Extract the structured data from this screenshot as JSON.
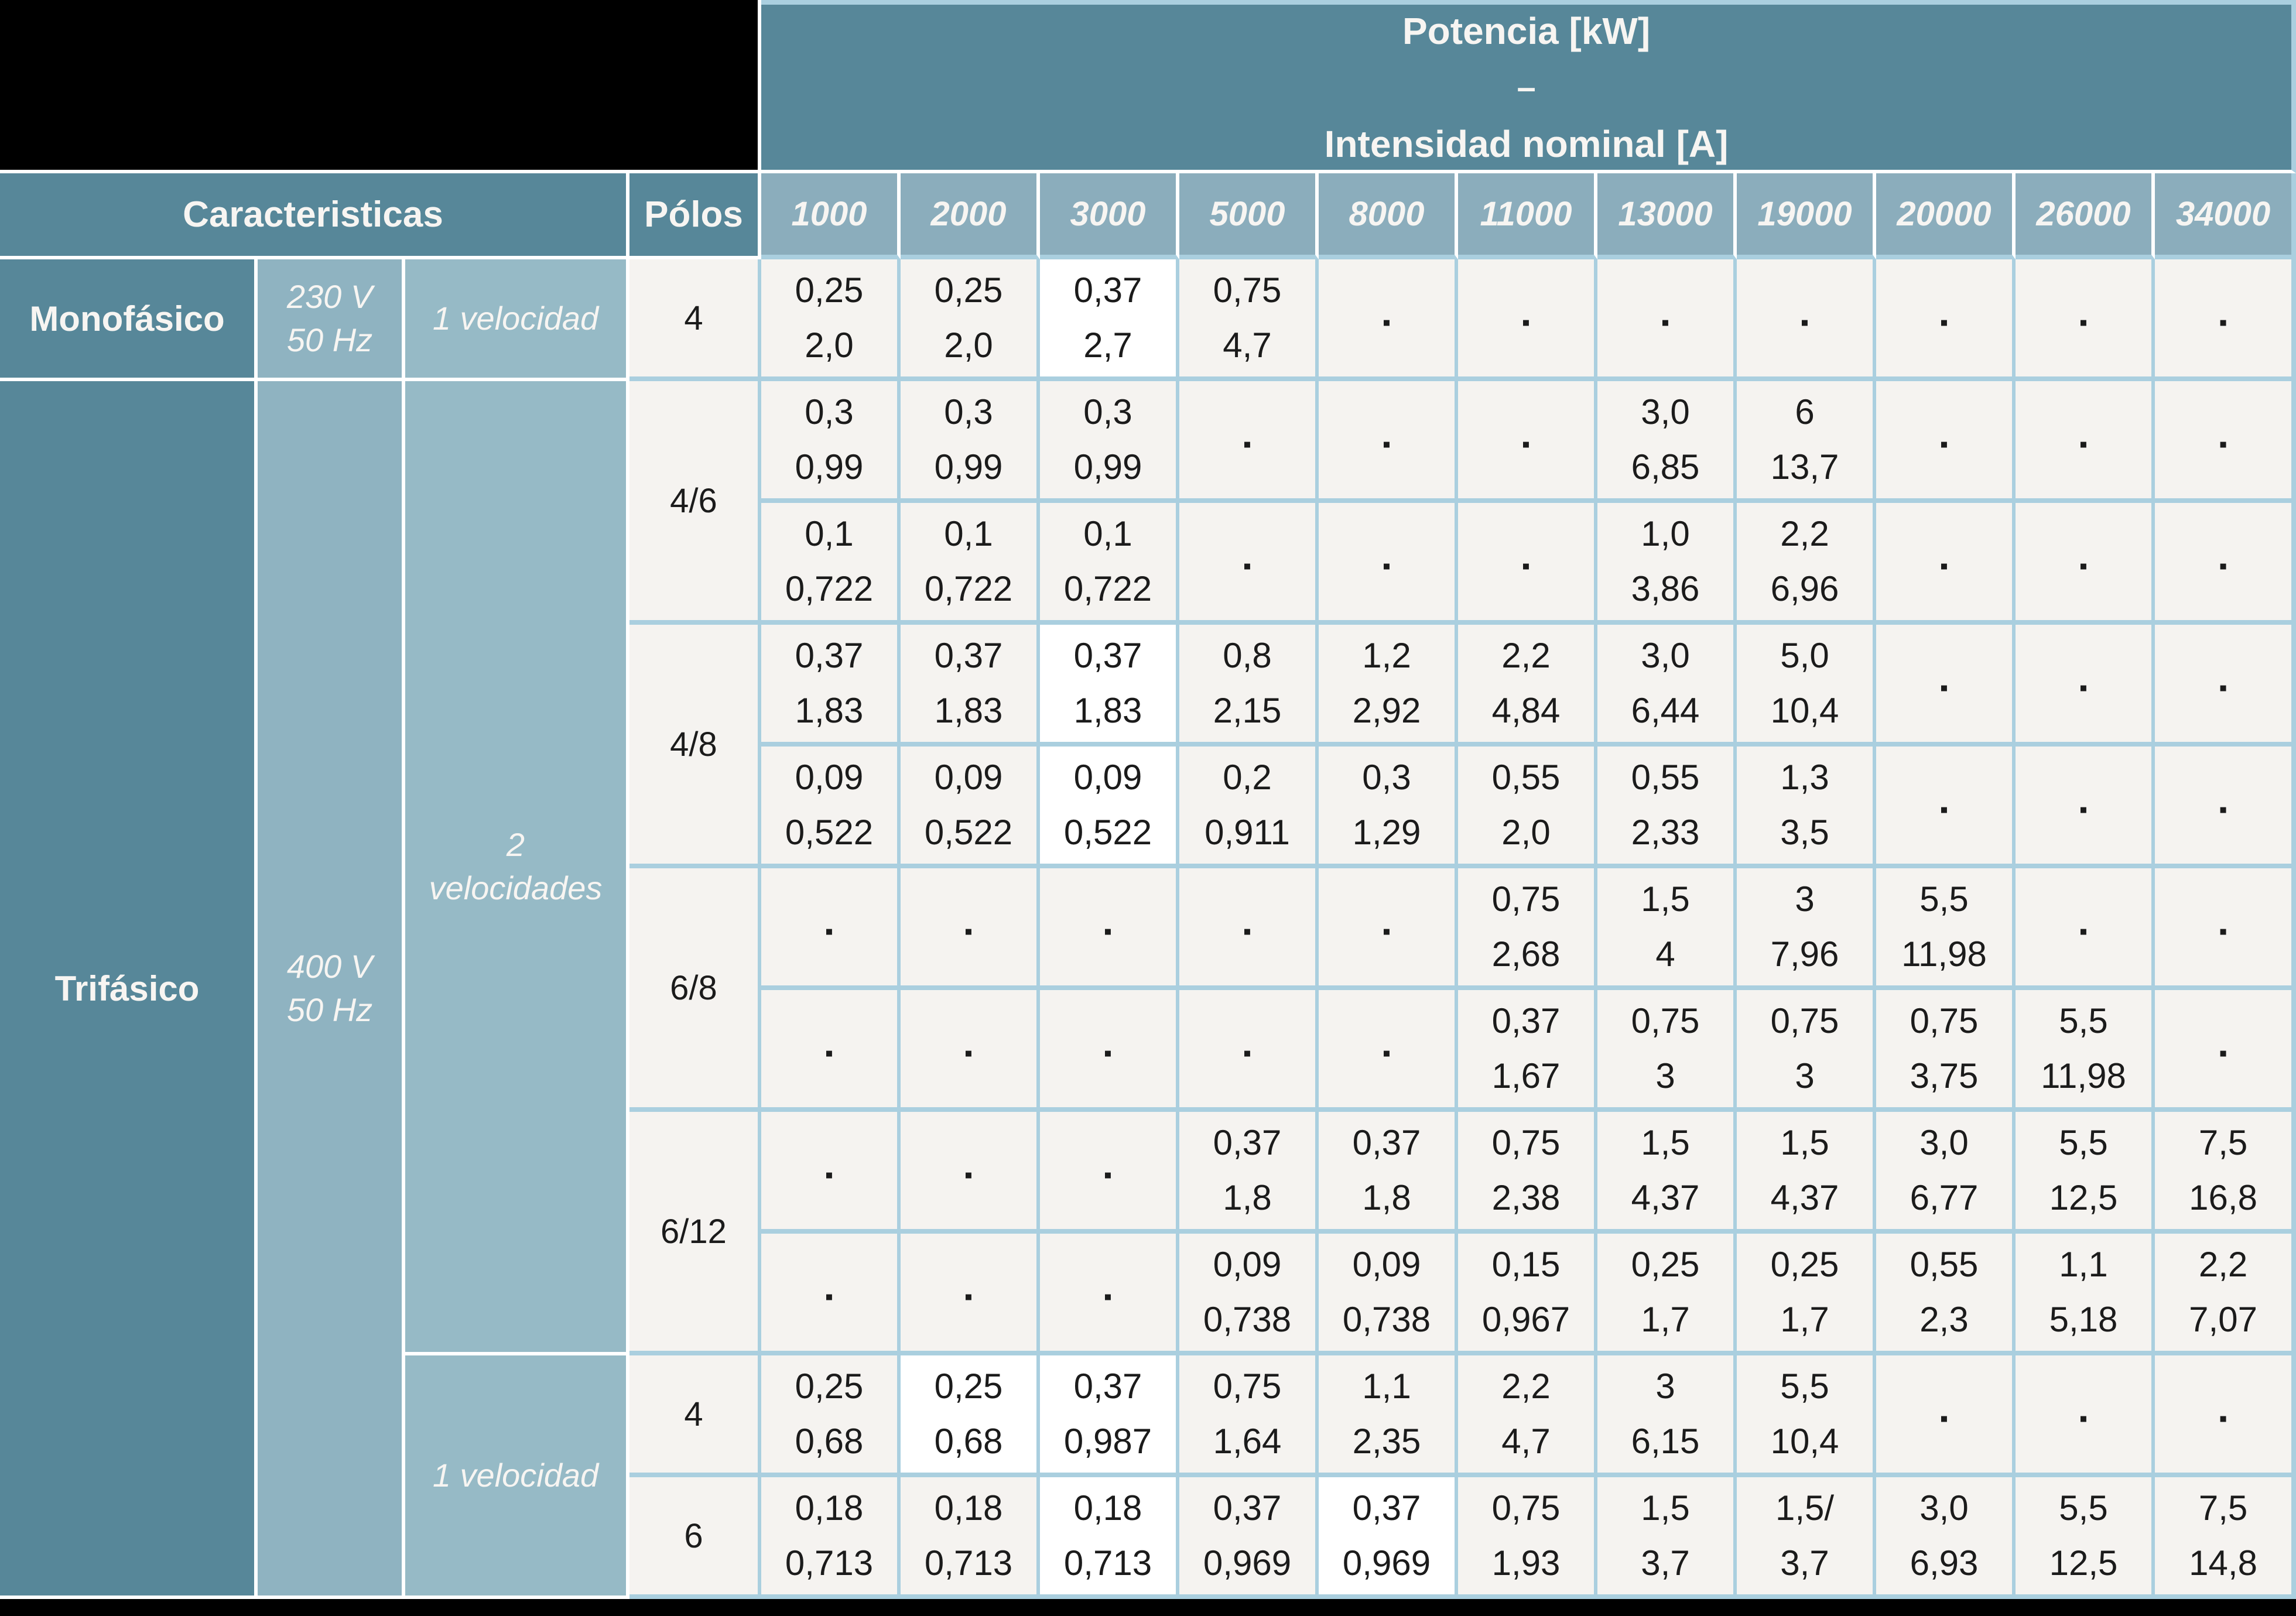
{
  "colors": {
    "header_teal": "#578799",
    "column_header_teal": "#8badbc",
    "voltage_teal": "#8fb3c1",
    "speed_teal": "#96bac6",
    "grid_blue": "#aacfdf",
    "cell_bg": "#f5f3f0",
    "cell_highlight": "#ffffff",
    "text_dark": "#1b1b1b",
    "text_light": "#f7f5f2"
  },
  "header": {
    "potencia_title": "Potencia [kW]",
    "separator": "–",
    "intensidad_title": "Intensidad nominal [A]",
    "caracteristicas": "Caracteristicas",
    "polos": "Pólos",
    "columns": [
      "1000",
      "2000",
      "3000",
      "5000",
      "8000",
      "11000",
      "13000",
      "19000",
      "20000",
      "26000",
      "34000"
    ]
  },
  "sidebar": {
    "monofasico": "Monofásico",
    "monofasico_voltage": [
      "230 V",
      "50 Hz"
    ],
    "monofasico_speed": "1 velocidad",
    "trifasico": "Trifásico",
    "trifasico_voltage": [
      "400 V",
      "50 Hz"
    ],
    "two_speeds": [
      "2",
      "velocidades"
    ],
    "one_speed": "1 velocidad"
  },
  "rows": [
    {
      "polos": "4",
      "cells": [
        {
          "kw": "0,25",
          "a": "2,0"
        },
        {
          "kw": "0,25",
          "a": "2,0"
        },
        {
          "kw": "0,37",
          "a": "2,7",
          "hl": true
        },
        {
          "kw": "0,75",
          "a": "4,7"
        },
        "-",
        "-",
        "-",
        "-",
        "-",
        "-",
        "-"
      ]
    },
    {
      "polos": "4/6",
      "cells": [
        {
          "kw": "0,3",
          "a": "0,99"
        },
        {
          "kw": "0,3",
          "a": "0,99"
        },
        {
          "kw": "0,3",
          "a": "0,99"
        },
        "-",
        "-",
        "-",
        {
          "kw": "3,0",
          "a": "6,85"
        },
        {
          "kw": "6",
          "a": "13,7"
        },
        "-",
        "-",
        "-"
      ]
    },
    {
      "cells": [
        {
          "kw": "0,1",
          "a": "0,722"
        },
        {
          "kw": "0,1",
          "a": "0,722"
        },
        {
          "kw": "0,1",
          "a": "0,722"
        },
        "-",
        "-",
        "-",
        {
          "kw": "1,0",
          "a": "3,86"
        },
        {
          "kw": "2,2",
          "a": "6,96"
        },
        "-",
        "-",
        "-"
      ]
    },
    {
      "polos": "4/8",
      "cells": [
        {
          "kw": "0,37",
          "a": "1,83"
        },
        {
          "kw": "0,37",
          "a": "1,83"
        },
        {
          "kw": "0,37",
          "a": "1,83",
          "hl": true
        },
        {
          "kw": "0,8",
          "a": "2,15"
        },
        {
          "kw": "1,2",
          "a": "2,92"
        },
        {
          "kw": "2,2",
          "a": "4,84"
        },
        {
          "kw": "3,0",
          "a": "6,44"
        },
        {
          "kw": "5,0",
          "a": "10,4"
        },
        "-",
        "-",
        "-"
      ]
    },
    {
      "cells": [
        {
          "kw": "0,09",
          "a": "0,522"
        },
        {
          "kw": "0,09",
          "a": "0,522"
        },
        {
          "kw": "0,09",
          "a": "0,522",
          "hl": true
        },
        {
          "kw": "0,2",
          "a": "0,911"
        },
        {
          "kw": "0,3",
          "a": "1,29"
        },
        {
          "kw": "0,55",
          "a": "2,0"
        },
        {
          "kw": "0,55",
          "a": "2,33"
        },
        {
          "kw": "1,3",
          "a": "3,5"
        },
        "-",
        "-",
        "-"
      ]
    },
    {
      "polos": "6/8",
      "cells": [
        "-",
        "-",
        "-",
        "-",
        "-",
        {
          "kw": "0,75",
          "a": "2,68"
        },
        {
          "kw": "1,5",
          "a": "4"
        },
        {
          "kw": "3",
          "a": "7,96"
        },
        {
          "kw": "5,5",
          "a": "11,98"
        },
        "-",
        "-"
      ]
    },
    {
      "cells": [
        "-",
        "-",
        "-",
        "-",
        "-",
        {
          "kw": "0,37",
          "a": "1,67"
        },
        {
          "kw": "0,75",
          "a": "3"
        },
        {
          "kw": "0,75",
          "a": "3"
        },
        {
          "kw": "0,75",
          "a": "3,75"
        },
        {
          "kw": "5,5",
          "a": "11,98"
        },
        "-"
      ]
    },
    {
      "polos": "6/12",
      "cells": [
        "-",
        "-",
        "-",
        {
          "kw": "0,37",
          "a": "1,8"
        },
        {
          "kw": "0,37",
          "a": "1,8"
        },
        {
          "kw": "0,75",
          "a": "2,38"
        },
        {
          "kw": "1,5",
          "a": "4,37"
        },
        {
          "kw": "1,5",
          "a": "4,37"
        },
        {
          "kw": "3,0",
          "a": "6,77"
        },
        {
          "kw": "5,5",
          "a": "12,5"
        },
        {
          "kw": "7,5",
          "a": "16,8"
        }
      ]
    },
    {
      "cells": [
        "-",
        "-",
        "-",
        {
          "kw": "0,09",
          "a": "0,738"
        },
        {
          "kw": "0,09",
          "a": "0,738"
        },
        {
          "kw": "0,15",
          "a": "0,967"
        },
        {
          "kw": "0,25",
          "a": "1,7"
        },
        {
          "kw": "0,25",
          "a": "1,7"
        },
        {
          "kw": "0,55",
          "a": "2,3"
        },
        {
          "kw": "1,1",
          "a": "5,18"
        },
        {
          "kw": "2,2",
          "a": "7,07"
        }
      ]
    },
    {
      "polos": "4",
      "cells": [
        {
          "kw": "0,25",
          "a": "0,68"
        },
        {
          "kw": "0,25",
          "a": "0,68",
          "hl": true
        },
        {
          "kw": "0,37",
          "a": "0,987",
          "hl": true
        },
        {
          "kw": "0,75",
          "a": "1,64"
        },
        {
          "kw": "1,1",
          "a": "2,35"
        },
        {
          "kw": "2,2",
          "a": "4,7"
        },
        {
          "kw": "3",
          "a": "6,15"
        },
        {
          "kw": "5,5",
          "a": "10,4"
        },
        "-",
        "-",
        "-"
      ]
    },
    {
      "polos": "6",
      "cells": [
        {
          "kw": "0,18",
          "a": "0,713"
        },
        {
          "kw": "0,18",
          "a": "0,713"
        },
        {
          "kw": "0,18",
          "a": "0,713",
          "hl": true
        },
        {
          "kw": "0,37",
          "a": "0,969"
        },
        {
          "kw": "0,37",
          "a": "0,969",
          "hl": true
        },
        {
          "kw": "0,75",
          "a": "1,93"
        },
        {
          "kw": "1,5",
          "a": "3,7"
        },
        {
          "kw": "1,5/",
          "a": "3,7"
        },
        {
          "kw": "3,0",
          "a": "6,93"
        },
        {
          "kw": "5,5",
          "a": "12,5"
        },
        {
          "kw": "7,5",
          "a": "14,8"
        }
      ]
    }
  ]
}
